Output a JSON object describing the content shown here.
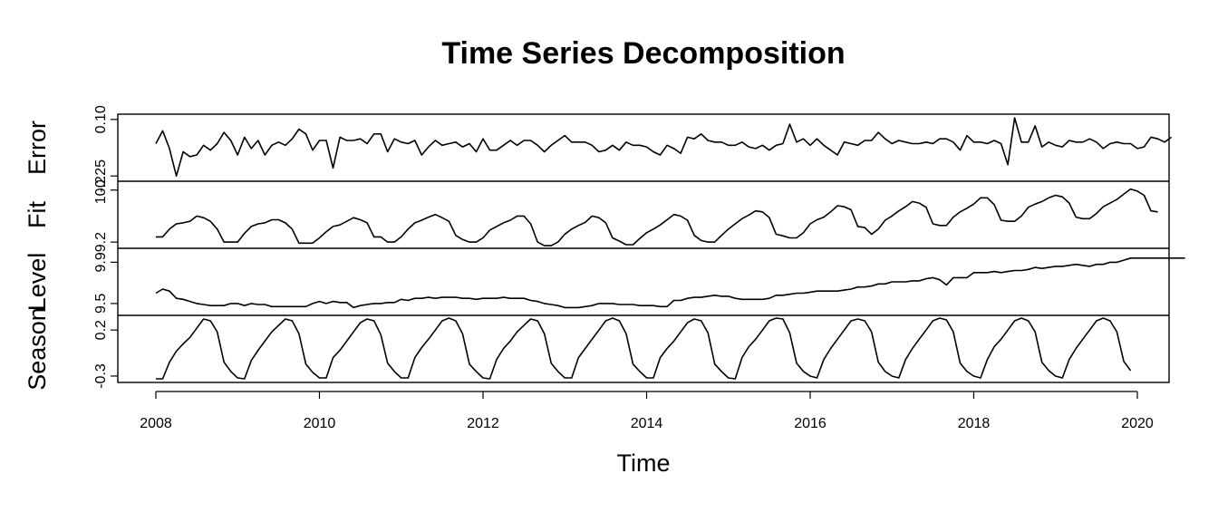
{
  "chart_data": {
    "type": "line",
    "title": "Time Series Decomposition",
    "xlabel": "Time",
    "x_start": 2008,
    "x_step": 0.08333333,
    "xlim": [
      2008,
      2020
    ],
    "x_ticks": [
      2008,
      2010,
      2012,
      2014,
      2016,
      2018,
      2020
    ],
    "panels": [
      {
        "name": "Error",
        "ylim": [
          -0.26,
          0.11
        ],
        "y_ticks": [
          0.1,
          -0.25
        ],
        "y_tick_labels": [
          "0.10",
          "-0.25"
        ],
        "values": [
          -0.05,
          0.03,
          -0.08,
          -0.25,
          -0.1,
          -0.13,
          -0.12,
          -0.06,
          -0.09,
          -0.05,
          0.02,
          -0.03,
          -0.12,
          -0.01,
          -0.08,
          -0.03,
          -0.12,
          -0.06,
          -0.04,
          -0.06,
          -0.02,
          0.04,
          0.01,
          -0.09,
          -0.03,
          -0.03,
          -0.2,
          -0.01,
          -0.03,
          -0.03,
          -0.02,
          -0.05,
          0.01,
          0.01,
          -0.1,
          -0.02,
          -0.04,
          -0.05,
          -0.03,
          -0.12,
          -0.07,
          -0.03,
          -0.06,
          -0.05,
          -0.04,
          -0.07,
          -0.05,
          -0.1,
          -0.02,
          -0.09,
          -0.09,
          -0.06,
          -0.03,
          -0.06,
          -0.03,
          -0.03,
          -0.06,
          -0.1,
          -0.06,
          -0.03,
          0.0,
          -0.04,
          -0.04,
          -0.04,
          -0.06,
          -0.1,
          -0.09,
          -0.06,
          -0.09,
          -0.04,
          -0.06,
          -0.06,
          -0.07,
          -0.1,
          -0.12,
          -0.06,
          -0.08,
          -0.11,
          -0.01,
          -0.02,
          0.01,
          -0.03,
          -0.04,
          -0.04,
          -0.06,
          -0.06,
          -0.04,
          -0.07,
          -0.08,
          -0.06,
          -0.09,
          -0.06,
          -0.05,
          0.07,
          -0.04,
          -0.02,
          -0.06,
          -0.02,
          -0.06,
          -0.09,
          -0.12,
          -0.04,
          -0.05,
          -0.06,
          -0.03,
          -0.03,
          0.02,
          -0.02,
          -0.05,
          -0.03,
          -0.04,
          -0.05,
          -0.05,
          -0.04,
          -0.05,
          -0.02,
          -0.02,
          -0.04,
          -0.09,
          0.0,
          -0.04,
          -0.04,
          -0.05,
          -0.03,
          -0.05,
          -0.18,
          0.11,
          -0.04,
          -0.04,
          0.06,
          -0.07,
          -0.04,
          -0.06,
          -0.07,
          -0.03,
          -0.04,
          -0.04,
          -0.02,
          -0.04,
          -0.08,
          -0.05,
          -0.04,
          -0.05,
          -0.05,
          -0.08,
          -0.07,
          -0.01,
          -0.02,
          -0.04,
          -0.01
        ]
      },
      {
        "name": "Fit",
        "ylim": [
          9.15,
          10.3
        ],
        "y_ticks": [
          9.2,
          10.2
        ],
        "y_tick_labels": [
          "9.2",
          "10.2"
        ],
        "values": [
          9.3,
          9.3,
          9.45,
          9.55,
          9.57,
          9.6,
          9.7,
          9.67,
          9.6,
          9.45,
          9.2,
          9.2,
          9.2,
          9.37,
          9.5,
          9.55,
          9.57,
          9.63,
          9.63,
          9.57,
          9.45,
          9.18,
          9.18,
          9.18,
          9.28,
          9.4,
          9.5,
          9.53,
          9.6,
          9.67,
          9.63,
          9.57,
          9.3,
          9.3,
          9.2,
          9.2,
          9.3,
          9.45,
          9.57,
          9.62,
          9.68,
          9.73,
          9.67,
          9.6,
          9.33,
          9.25,
          9.2,
          9.2,
          9.28,
          9.43,
          9.5,
          9.57,
          9.62,
          9.7,
          9.7,
          9.55,
          9.2,
          9.13,
          9.13,
          9.2,
          9.35,
          9.45,
          9.52,
          9.58,
          9.7,
          9.67,
          9.57,
          9.28,
          9.22,
          9.15,
          9.15,
          9.27,
          9.38,
          9.45,
          9.53,
          9.63,
          9.73,
          9.7,
          9.62,
          9.33,
          9.23,
          9.2,
          9.2,
          9.33,
          9.45,
          9.55,
          9.65,
          9.72,
          9.8,
          9.78,
          9.67,
          9.35,
          9.32,
          9.28,
          9.28,
          9.38,
          9.55,
          9.63,
          9.68,
          9.78,
          9.9,
          9.88,
          9.82,
          9.5,
          9.48,
          9.35,
          9.45,
          9.62,
          9.7,
          9.8,
          9.88,
          9.98,
          9.95,
          9.87,
          9.55,
          9.52,
          9.52,
          9.68,
          9.78,
          9.85,
          9.93,
          10.05,
          10.05,
          9.92,
          9.62,
          9.6,
          9.6,
          9.7,
          9.87,
          9.93,
          9.98,
          10.05,
          10.1,
          10.07,
          9.95,
          9.68,
          9.65,
          9.65,
          9.75,
          9.88,
          9.95,
          10.02,
          10.12,
          10.22,
          10.18,
          10.1,
          9.8,
          9.78
        ]
      },
      {
        "name": "Level",
        "ylim": [
          9.42,
          10.0
        ],
        "y_ticks": [
          9.5,
          9.9
        ],
        "y_tick_labels": [
          "9.5",
          "9.9"
        ],
        "values": [
          9.6,
          9.64,
          9.62,
          9.55,
          9.54,
          9.52,
          9.5,
          9.49,
          9.48,
          9.48,
          9.48,
          9.5,
          9.5,
          9.48,
          9.5,
          9.49,
          9.49,
          9.47,
          9.47,
          9.47,
          9.47,
          9.47,
          9.47,
          9.5,
          9.52,
          9.5,
          9.52,
          9.51,
          9.51,
          9.46,
          9.48,
          9.49,
          9.5,
          9.5,
          9.51,
          9.51,
          9.54,
          9.53,
          9.55,
          9.55,
          9.56,
          9.55,
          9.56,
          9.56,
          9.56,
          9.55,
          9.55,
          9.54,
          9.55,
          9.55,
          9.55,
          9.56,
          9.55,
          9.55,
          9.55,
          9.53,
          9.52,
          9.5,
          9.49,
          9.48,
          9.46,
          9.46,
          9.46,
          9.47,
          9.48,
          9.5,
          9.5,
          9.5,
          9.49,
          9.49,
          9.49,
          9.48,
          9.48,
          9.48,
          9.47,
          9.47,
          9.53,
          9.53,
          9.55,
          9.56,
          9.56,
          9.57,
          9.58,
          9.57,
          9.57,
          9.55,
          9.54,
          9.54,
          9.54,
          9.54,
          9.55,
          9.58,
          9.58,
          9.59,
          9.6,
          9.6,
          9.61,
          9.62,
          9.62,
          9.62,
          9.62,
          9.63,
          9.64,
          9.66,
          9.66,
          9.67,
          9.69,
          9.69,
          9.71,
          9.71,
          9.71,
          9.72,
          9.72,
          9.74,
          9.75,
          9.73,
          9.68,
          9.75,
          9.75,
          9.75,
          9.8,
          9.8,
          9.8,
          9.81,
          9.8,
          9.81,
          9.82,
          9.82,
          9.83,
          9.85,
          9.84,
          9.85,
          9.86,
          9.86,
          9.87,
          9.88,
          9.87,
          9.86,
          9.88,
          9.88,
          9.9,
          9.9,
          9.92,
          9.94,
          9.94,
          9.94,
          9.94,
          9.94,
          9.94,
          9.94,
          9.94,
          9.94
        ]
      },
      {
        "name": "Season",
        "ylim": [
          -0.33,
          0.32
        ],
        "y_ticks": [
          -0.3,
          0.2
        ],
        "y_tick_labels": [
          "-0.3",
          "0.2"
        ],
        "values": [
          -0.33,
          -0.33,
          -0.15,
          -0.03,
          0.05,
          0.12,
          0.22,
          0.32,
          0.3,
          0.18,
          -0.15,
          -0.25,
          -0.32,
          -0.33,
          -0.13,
          -0.02,
          0.08,
          0.18,
          0.25,
          0.32,
          0.3,
          0.16,
          -0.17,
          -0.26,
          -0.32,
          -0.32,
          -0.1,
          -0.02,
          0.08,
          0.18,
          0.28,
          0.32,
          0.3,
          0.15,
          -0.16,
          -0.25,
          -0.32,
          -0.32,
          -0.1,
          0.01,
          0.1,
          0.2,
          0.3,
          0.33,
          0.3,
          0.16,
          -0.17,
          -0.25,
          -0.32,
          -0.33,
          -0.12,
          0.0,
          0.08,
          0.18,
          0.25,
          0.32,
          0.3,
          0.16,
          -0.16,
          -0.25,
          -0.32,
          -0.32,
          -0.1,
          0.0,
          0.1,
          0.2,
          0.3,
          0.33,
          0.3,
          0.16,
          -0.17,
          -0.25,
          -0.32,
          -0.32,
          -0.1,
          0.0,
          0.08,
          0.18,
          0.28,
          0.32,
          0.3,
          0.17,
          -0.17,
          -0.25,
          -0.32,
          -0.33,
          -0.1,
          0.02,
          0.1,
          0.2,
          0.3,
          0.33,
          0.32,
          0.17,
          -0.16,
          -0.25,
          -0.3,
          -0.32,
          -0.12,
          0.0,
          0.1,
          0.2,
          0.3,
          0.32,
          0.3,
          0.18,
          -0.15,
          -0.25,
          -0.3,
          -0.32,
          -0.12,
          0.0,
          0.1,
          0.2,
          0.3,
          0.33,
          0.31,
          0.18,
          -0.16,
          -0.25,
          -0.3,
          -0.32,
          -0.12,
          0.02,
          0.1,
          0.2,
          0.3,
          0.33,
          0.3,
          0.18,
          -0.15,
          -0.24,
          -0.3,
          -0.32,
          -0.12,
          0.0,
          0.1,
          0.2,
          0.3,
          0.33,
          0.3,
          0.18,
          -0.14,
          -0.24
        ]
      }
    ],
    "panel_labels": [
      "Error",
      "Fit",
      "Level",
      "Season"
    ],
    "grid": false
  }
}
